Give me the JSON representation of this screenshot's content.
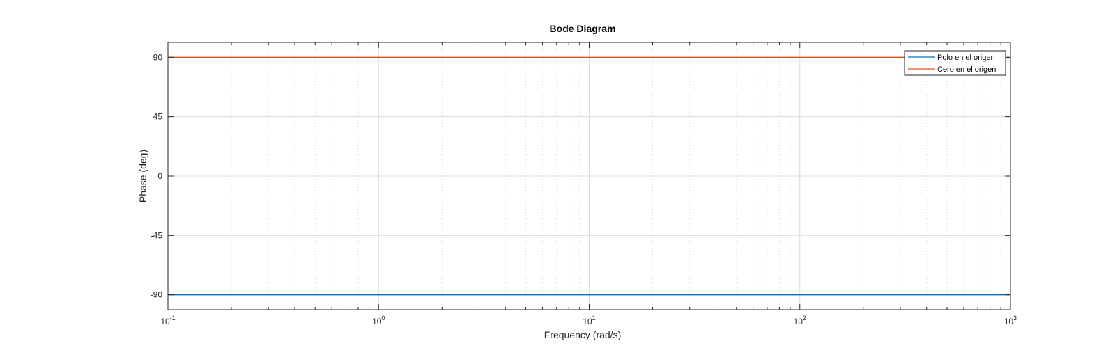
{
  "chart_data": {
    "type": "line",
    "title": "Bode Diagram",
    "xlabel": "Frequency  (rad/s)",
    "ylabel": "Phase (deg)",
    "x_scale": "log",
    "xlim": [
      0.1,
      1000
    ],
    "ylim": [
      -101.25,
      101.25
    ],
    "x_ticks": [
      {
        "value": 0.1,
        "base": "10",
        "exp": "-1"
      },
      {
        "value": 1,
        "base": "10",
        "exp": "0"
      },
      {
        "value": 10,
        "base": "10",
        "exp": "1"
      },
      {
        "value": 100,
        "base": "10",
        "exp": "2"
      },
      {
        "value": 1000,
        "base": "10",
        "exp": "3"
      }
    ],
    "y_ticks": [
      {
        "value": 90,
        "label": "90"
      },
      {
        "value": 45,
        "label": "45"
      },
      {
        "value": 0,
        "label": "0"
      },
      {
        "value": -45,
        "label": "-45"
      },
      {
        "value": -90,
        "label": "-90"
      }
    ],
    "grid": true,
    "minor_grid": true,
    "legend_position": "top-right",
    "series": [
      {
        "name": "Polo en el origen",
        "color": "#0072bd",
        "x": [
          0.1,
          1000
        ],
        "y": [
          -90,
          -90
        ]
      },
      {
        "name": "Cero en el origen",
        "color": "#d95319",
        "x": [
          0.1,
          1000
        ],
        "y": [
          90,
          90
        ]
      }
    ]
  }
}
